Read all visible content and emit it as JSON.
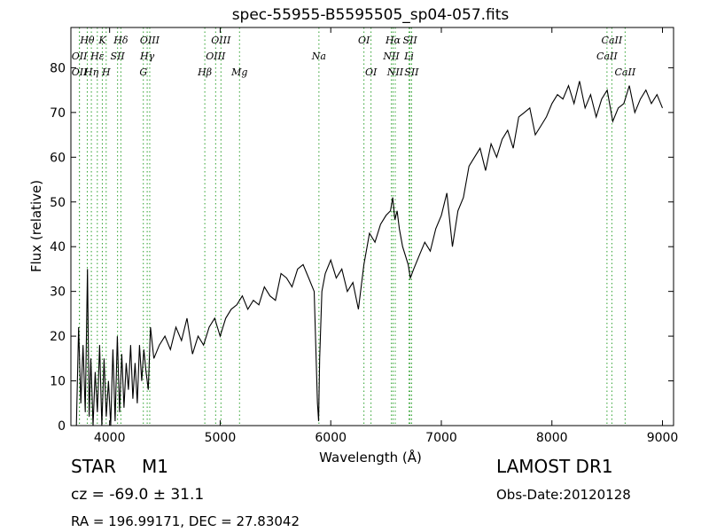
{
  "meta": {
    "object_class": "STAR",
    "subclass": "M1",
    "survey": "LAMOST DR1",
    "redshift": "cz = -69.0 ± 31.1",
    "obs_date": "Obs-Date:20120128",
    "coords": "RA = 196.99171, DEC = 27.83042"
  },
  "chart_data": {
    "type": "line",
    "title": "spec-55955-B5595505_sp04-057.fits",
    "xlabel": "Wavelength (Å)",
    "ylabel": "Flux (relative)",
    "xlim": [
      3650,
      9100
    ],
    "ylim": [
      0,
      89
    ],
    "xticks": [
      4000,
      5000,
      6000,
      7000,
      8000,
      9000
    ],
    "yticks": [
      0,
      10,
      20,
      30,
      40,
      50,
      60,
      70,
      80
    ],
    "grid": false,
    "line_color": "#000000",
    "marker_color": "#2ca02c",
    "series": [
      {
        "x": [
          3700,
          3720,
          3740,
          3760,
          3780,
          3800,
          3815,
          3830,
          3850,
          3870,
          3890,
          3910,
          3930,
          3950,
          3970,
          3990,
          4010,
          4030,
          4050,
          4070,
          4090,
          4110,
          4130,
          4150,
          4170,
          4190,
          4210,
          4230,
          4250,
          4270,
          4290,
          4310,
          4330,
          4350,
          4370,
          4400,
          4450,
          4500,
          4550,
          4600,
          4650,
          4700,
          4750,
          4800,
          4850,
          4900,
          4950,
          5000,
          5050,
          5100,
          5150,
          5200,
          5250,
          5300,
          5350,
          5400,
          5450,
          5500,
          5550,
          5600,
          5650,
          5700,
          5750,
          5800,
          5850,
          5880,
          5890,
          5900,
          5920,
          5950,
          6000,
          6050,
          6100,
          6150,
          6200,
          6250,
          6300,
          6350,
          6400,
          6450,
          6500,
          6540,
          6560,
          6580,
          6600,
          6620,
          6650,
          6700,
          6720,
          6750,
          6800,
          6850,
          6900,
          6950,
          7000,
          7050,
          7100,
          7150,
          7200,
          7250,
          7300,
          7350,
          7400,
          7450,
          7500,
          7550,
          7600,
          7650,
          7700,
          7750,
          7800,
          7850,
          7900,
          7950,
          8000,
          8050,
          8100,
          8150,
          8200,
          8250,
          8300,
          8350,
          8400,
          8450,
          8500,
          8550,
          8600,
          8650,
          8700,
          8750,
          8800,
          8850,
          8900,
          8950,
          9000
        ],
        "y": [
          0,
          22,
          5,
          18,
          3,
          35,
          2,
          15,
          0,
          12,
          3,
          18,
          0,
          15,
          2,
          10,
          0,
          17,
          1,
          20,
          3,
          16,
          4,
          14,
          8,
          18,
          6,
          14,
          5,
          18,
          10,
          17,
          12,
          8,
          22,
          15,
          18,
          20,
          17,
          22,
          19,
          24,
          16,
          20,
          18,
          22,
          24,
          20,
          24,
          26,
          27,
          29,
          26,
          28,
          27,
          31,
          29,
          28,
          34,
          33,
          31,
          35,
          36,
          33,
          30,
          5,
          1,
          15,
          30,
          34,
          37,
          33,
          35,
          30,
          32,
          26,
          36,
          43,
          41,
          45,
          47,
          48,
          51,
          46,
          48,
          44,
          40,
          36,
          33,
          35,
          38,
          41,
          39,
          44,
          47,
          52,
          40,
          48,
          51,
          58,
          60,
          62,
          57,
          63,
          60,
          64,
          66,
          62,
          69,
          70,
          71,
          65,
          67,
          69,
          72,
          74,
          73,
          76,
          72,
          77,
          71,
          74,
          69,
          73,
          75,
          68,
          71,
          72,
          76,
          70,
          73,
          75,
          72,
          74,
          71
        ]
      }
    ],
    "lines_top": [
      {
        "label": "Hθ",
        "x": 3798
      },
      {
        "label": "K",
        "x": 3934
      },
      {
        "label": "Hδ",
        "x": 4102
      },
      {
        "label": "OIII",
        "x": 4363
      },
      {
        "label": "OIII",
        "x": 5007
      },
      {
        "label": "OI",
        "x": 6300
      },
      {
        "label": "Hα",
        "x": 6563
      },
      {
        "label": "SII",
        "x": 6717
      },
      {
        "label": "CaII",
        "x": 8542
      }
    ],
    "lines_mid": [
      {
        "label": "OII",
        "x": 3727
      },
      {
        "label": "Hε",
        "x": 3889
      },
      {
        "label": "SII",
        "x": 4072
      },
      {
        "label": "Hγ",
        "x": 4340
      },
      {
        "label": "OIII",
        "x": 4959
      },
      {
        "label": "Na",
        "x": 5893
      },
      {
        "label": "NII",
        "x": 6548
      },
      {
        "label": "Li",
        "x": 6708
      },
      {
        "label": "CaII",
        "x": 8498
      }
    ],
    "lines_low": [
      {
        "label": "OII",
        "x": 3727
      },
      {
        "label": "Hη",
        "x": 3835
      },
      {
        "label": "H",
        "x": 3969
      },
      {
        "label": "G",
        "x": 4305
      },
      {
        "label": "Hβ",
        "x": 4861
      },
      {
        "label": "Mg",
        "x": 5175
      },
      {
        "label": "OI",
        "x": 6364
      },
      {
        "label": "NII",
        "x": 6583
      },
      {
        "label": "SII",
        "x": 6731
      },
      {
        "label": "CaII",
        "x": 8662
      }
    ]
  }
}
